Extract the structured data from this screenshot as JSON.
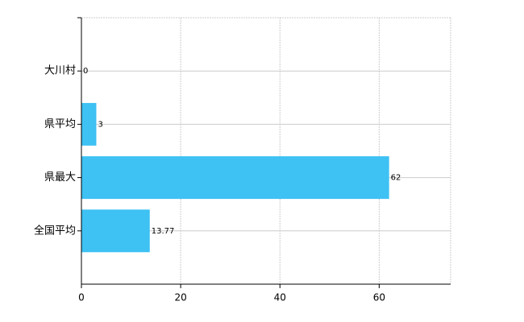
{
  "chart_data": {
    "type": "hbar",
    "categories": [
      "大川村",
      "県平均",
      "県最大",
      "全国平均"
    ],
    "values": [
      0,
      3,
      62,
      13.77
    ],
    "color": "#3ec1f3",
    "xlim": [
      0,
      74.4
    ],
    "xticks": [
      0,
      20,
      40,
      60
    ],
    "grid": true
  }
}
